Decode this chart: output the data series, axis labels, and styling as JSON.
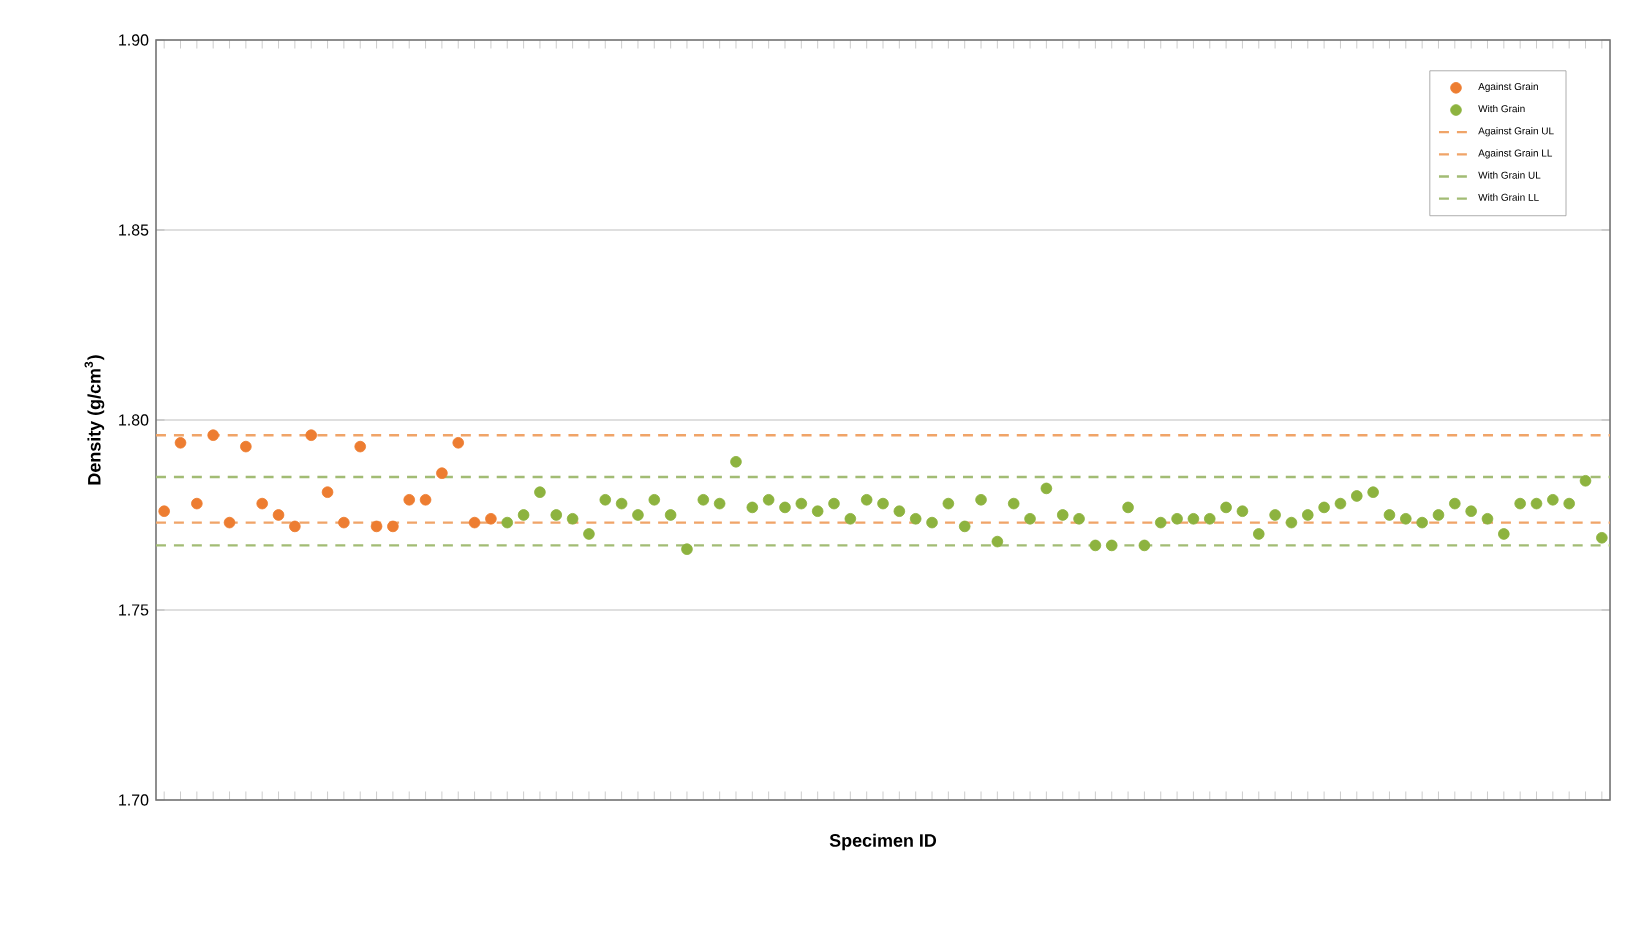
{
  "chart_data": {
    "type": "scatter",
    "xlabel": "Specimen ID",
    "ylabel": "Density (g/cm$^{3}$)",
    "categories": [
      null,
      null,
      null,
      null,
      null,
      null,
      null,
      null,
      null,
      null,
      null,
      null,
      null,
      null,
      null,
      null,
      null,
      null,
      null,
      null,
      null,
      null,
      null,
      null,
      null,
      null,
      null,
      null,
      null,
      null,
      null,
      null,
      null,
      null,
      null,
      null,
      null,
      null,
      null,
      null,
      null,
      null,
      null,
      null,
      null,
      null,
      null,
      null,
      null,
      null,
      null,
      null,
      null,
      null,
      null,
      null,
      null,
      null,
      null,
      null,
      null,
      null,
      null,
      null,
      null,
      null,
      null,
      null,
      null,
      null,
      null,
      null,
      null,
      null,
      null,
      null,
      null,
      null,
      null,
      null,
      null,
      null,
      null,
      null,
      null,
      null,
      null,
      null,
      null
    ],
    "series": [
      {
        "name": "Against Grain",
        "color": "#ed7d31",
        "values": [
          1.776,
          1.794,
          1.778,
          1.796,
          1.773,
          1.793,
          1.778,
          1.775,
          1.772,
          1.796,
          1.781,
          1.773,
          1.793,
          1.772,
          1.772,
          1.779,
          1.779,
          1.786,
          1.794,
          1.773,
          1.774,
          null,
          null,
          null,
          null,
          null,
          null,
          null,
          null,
          null,
          null,
          null,
          null,
          null,
          null,
          null,
          null,
          null,
          null,
          null,
          null,
          null,
          null,
          null,
          null,
          null,
          null,
          null,
          null,
          null,
          null,
          null,
          null,
          null,
          null,
          null,
          null,
          null,
          null,
          null,
          null,
          null,
          null,
          null,
          null,
          null,
          null,
          null,
          null,
          null,
          null,
          null,
          null,
          null,
          null,
          null,
          null,
          null,
          null,
          null,
          null,
          null,
          null,
          null,
          null,
          null,
          null,
          null,
          null
        ]
      },
      {
        "name": "With Grain",
        "color": "#8db33f",
        "values": [
          null,
          null,
          null,
          null,
          null,
          null,
          null,
          null,
          null,
          null,
          null,
          null,
          null,
          null,
          null,
          null,
          null,
          null,
          null,
          null,
          null,
          1.773,
          1.775,
          1.781,
          1.775,
          1.774,
          1.77,
          1.779,
          1.778,
          1.775,
          1.779,
          1.775,
          1.766,
          1.779,
          1.778,
          1.789,
          1.777,
          1.779,
          1.777,
          1.778,
          1.776,
          1.778,
          1.774,
          1.779,
          1.778,
          1.776,
          1.774,
          1.773,
          1.778,
          1.772,
          1.779,
          1.768,
          1.778,
          1.774,
          1.782,
          1.775,
          1.774,
          1.767,
          1.767,
          1.777,
          1.767,
          1.773,
          1.774,
          1.774,
          1.774,
          1.777,
          1.776,
          1.77,
          1.775,
          1.773,
          1.775,
          1.777,
          1.778,
          1.78,
          1.781,
          1.775,
          1.774,
          1.773,
          1.775,
          1.778,
          1.776,
          1.774,
          1.77,
          1.778,
          1.778,
          1.779,
          1.778,
          1.784,
          1.769
        ]
      }
    ],
    "ref_lines": [
      {
        "axis": "y",
        "value": 1.796,
        "label": "Against Grain UL",
        "color": "#f0a468",
        "line_style": "dashed"
      },
      {
        "axis": "y",
        "value": 1.773,
        "label": "Against Grain LL",
        "color": "#f0a468",
        "line_style": "dashed"
      },
      {
        "axis": "y",
        "value": 1.785,
        "label": "With Grain UL",
        "color": "#a2bc74",
        "line_style": "dashed"
      },
      {
        "axis": "y",
        "value": 1.767,
        "label": "With Grain LL",
        "color": "#a2bc74",
        "line_style": "dashed"
      }
    ],
    "ylim": [
      1.7,
      1.9
    ],
    "yticks": [
      {
        "value": 1.7,
        "label": "1.70"
      },
      {
        "value": 1.75,
        "label": "1.75"
      },
      {
        "value": 1.8,
        "label": "1.80"
      },
      {
        "value": 1.85,
        "label": "1.85"
      },
      {
        "value": 1.9,
        "label": "1.90"
      }
    ],
    "grid": "y",
    "legend": "top right"
  }
}
